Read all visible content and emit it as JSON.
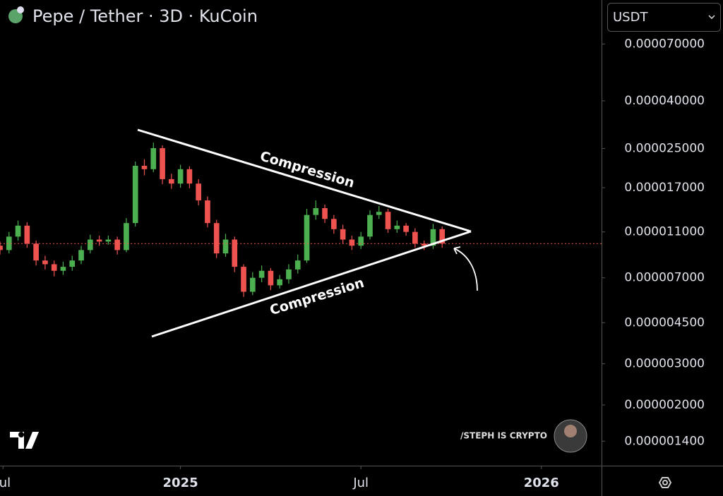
{
  "chart_data": {
    "type": "candlestick",
    "title": "Pepe / Tether · 3D · KuCoin",
    "currency_selector": "USDT",
    "annotations": [
      "Compression",
      "Compression"
    ],
    "watermark": "/STEPH IS CRYPTO",
    "log_scale": true,
    "up_color": "#4caf50",
    "down_color": "#ef5350",
    "x": [
      0,
      3,
      6,
      9,
      12,
      15,
      18,
      21,
      24,
      27,
      30,
      33,
      36,
      39,
      42,
      45,
      48,
      51,
      54,
      57,
      60,
      63,
      66,
      69,
      72,
      75,
      78,
      81,
      84,
      87,
      90,
      93,
      96,
      99,
      102,
      105,
      108,
      111,
      114,
      117,
      120,
      123,
      126,
      129,
      132,
      135,
      138,
      141,
      144,
      147
    ],
    "open": [
      9.6e-06,
      9.2e-06,
      1.05e-05,
      1.17e-05,
      9.8e-06,
      8.3e-06,
      8e-06,
      7.5e-06,
      7.8e-06,
      8.3e-06,
      9.2e-06,
      1.02e-05,
      1e-05,
      1.02e-05,
      9.2e-06,
      1.2e-05,
      2.11e-05,
      2.04e-05,
      2.51e-05,
      1.85e-05,
      1.77e-05,
      2.04e-05,
      1.77e-05,
      1.5e-05,
      1.2e-05,
      8.9e-06,
      1.02e-05,
      7.8e-06,
      6.1e-06,
      7e-06,
      7.5e-06,
      6.5e-06,
      6.9e-06,
      7.6e-06,
      8.3e-06,
      1.3e-05,
      1.39e-05,
      1.25e-05,
      1.13e-05,
      1.02e-05,
      9.6e-06,
      1.05e-05,
      1.3e-05,
      1.34e-05,
      1.13e-05,
      1.17e-05,
      1.1e-05,
      9.8e-06,
      9.6e-06,
      1.13e-05
    ],
    "high": [
      1e-05,
      1.1e-05,
      1.23e-05,
      1.21e-05,
      1.01e-05,
      8.7e-06,
      8.3e-06,
      8.2e-06,
      8.7e-06,
      9.6e-06,
      1.07e-05,
      1.06e-05,
      1.06e-05,
      1.05e-05,
      1.26e-05,
      2.2e-05,
      2.25e-05,
      2.65e-05,
      2.58e-05,
      1.95e-05,
      2.13e-05,
      2.1e-05,
      1.85e-05,
      1.56e-05,
      1.24e-05,
      1.08e-05,
      1.05e-05,
      8e-06,
      7.4e-06,
      7.9e-06,
      7.7e-06,
      7.2e-06,
      8e-06,
      8.8e-06,
      1.38e-05,
      1.5e-05,
      1.44e-05,
      1.3e-05,
      1.18e-05,
      1.06e-05,
      1.1e-05,
      1.36e-05,
      1.42e-05,
      1.38e-05,
      1.23e-05,
      1.2e-05,
      1.14e-05,
      1.01e-05,
      1.19e-05,
      1.16e-05
    ],
    "low": [
      8.8e-06,
      8.9e-06,
      1.01e-05,
      9.4e-06,
      7.9e-06,
      7.6e-06,
      7.1e-06,
      7.2e-06,
      7.5e-06,
      8e-06,
      8.9e-06,
      9.6e-06,
      9.7e-06,
      8.8e-06,
      9e-06,
      1.16e-05,
      1.92e-05,
      1.98e-05,
      1.76e-05,
      1.68e-05,
      1.7e-05,
      1.69e-05,
      1.43e-05,
      1.15e-05,
      8.5e-06,
      8.6e-06,
      7.4e-06,
      5.8e-06,
      5.9e-06,
      6.7e-06,
      6.2e-06,
      6.3e-06,
      6.6e-06,
      7.3e-06,
      8.1e-06,
      1.24e-05,
      1.2e-05,
      1.08e-05,
      9.8e-06,
      9.2e-06,
      9.3e-06,
      1.02e-05,
      1.25e-05,
      1.09e-05,
      1.09e-05,
      1.06e-05,
      9.4e-06,
      9.2e-06,
      9.3e-06,
      9.4e-06
    ],
    "close": [
      9.2e-06,
      1.05e-05,
      1.17e-05,
      9.8e-06,
      8.3e-06,
      8e-06,
      7.5e-06,
      7.8e-06,
      8.3e-06,
      9.2e-06,
      1.02e-05,
      1e-05,
      1.02e-05,
      9.2e-06,
      1.2e-05,
      2.11e-05,
      2.04e-05,
      2.51e-05,
      1.85e-05,
      1.77e-05,
      2.04e-05,
      1.77e-05,
      1.5e-05,
      1.2e-05,
      8.9e-06,
      1.02e-05,
      7.8e-06,
      6.1e-06,
      7e-06,
      7.5e-06,
      6.5e-06,
      6.9e-06,
      7.6e-06,
      8.3e-06,
      1.3e-05,
      1.39e-05,
      1.25e-05,
      1.13e-05,
      1.02e-05,
      9.6e-06,
      1.05e-05,
      1.3e-05,
      1.34e-05,
      1.13e-05,
      1.17e-05,
      1.1e-05,
      9.8e-06,
      9.6e-06,
      1.13e-05,
      9.8e-06
    ],
    "xlim": [
      0,
      200
    ],
    "xticks": [
      {
        "value": 1,
        "label": "Jul"
      },
      {
        "value": 60,
        "label": "2025"
      },
      {
        "value": 120,
        "label": "Jul"
      },
      {
        "value": 180,
        "label": "2026"
      }
    ],
    "ylim": [
      1.1e-06,
      0.000108
    ],
    "yticks": [
      {
        "value": 7e-05,
        "label": "0.000070000"
      },
      {
        "value": 4e-05,
        "label": "0.000040000"
      },
      {
        "value": 2.5e-05,
        "label": "0.000025000"
      },
      {
        "value": 1.7e-05,
        "label": "0.000017000"
      },
      {
        "value": 1.1e-05,
        "label": "0.000011000"
      },
      {
        "value": 7e-06,
        "label": "0.000007000"
      },
      {
        "value": 4.5e-06,
        "label": "0.000004500"
      },
      {
        "value": 3e-06,
        "label": "0.000003000"
      },
      {
        "value": 2e-06,
        "label": "0.000002000"
      },
      {
        "value": 1.4e-06,
        "label": "0.000001400"
      }
    ]
  }
}
